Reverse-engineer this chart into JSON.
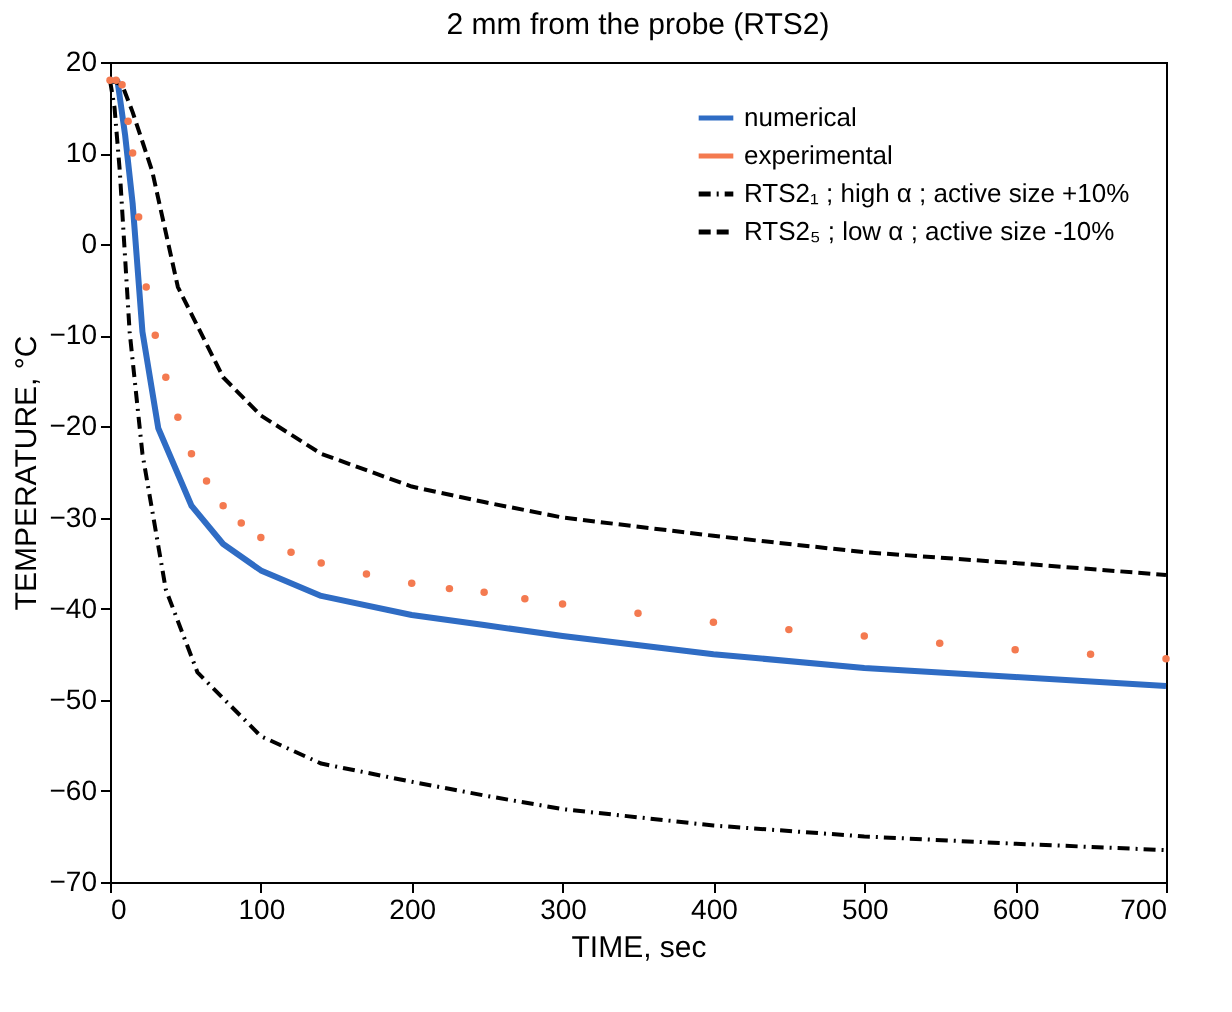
{
  "chart_data": {
    "type": "line",
    "title": "2 mm from the probe (RTS2)",
    "xlabel": "TIME, sec",
    "ylabel": "TEMPERATURE, °C",
    "xlim": [
      0,
      700
    ],
    "xticks": [
      0,
      100,
      200,
      300,
      400,
      500,
      600,
      700
    ],
    "ylim": [
      -70,
      20
    ],
    "yticks": [
      -70,
      -60,
      -50,
      -40,
      -30,
      -20,
      -10,
      0,
      10,
      20
    ],
    "grid": false,
    "legend": "top right",
    "series": [
      {
        "name": "numerical",
        "type": "line",
        "line_style": "solid",
        "color": "#2f6cc4",
        "x": [
          0,
          5,
          10,
          15,
          21.5,
          32,
          54,
          75,
          100,
          140,
          200,
          248,
          300,
          400,
          500,
          600,
          700
        ],
        "values": [
          18,
          17.9,
          12,
          4.5,
          -9.6,
          -20.2,
          -28.7,
          -32.9,
          -35.8,
          -38.6,
          -40.7,
          -41.8,
          -43,
          -45,
          -46.5,
          -47.5,
          -48.5
        ]
      },
      {
        "name": "experimental",
        "type": "scatter",
        "marker": "circle",
        "color": "#f47a50",
        "x": [
          0,
          4,
          8,
          12,
          15,
          19,
          24,
          30,
          37,
          45,
          54,
          64,
          75,
          87,
          100,
          120,
          140,
          170,
          200,
          225,
          248,
          275,
          300,
          350,
          400,
          450,
          500,
          550,
          600,
          650,
          700
        ],
        "values": [
          18,
          18,
          17.5,
          13.5,
          10,
          3,
          -4.7,
          -10,
          -14.6,
          -19,
          -23,
          -26,
          -28.7,
          -30.6,
          -32.2,
          -33.8,
          -35,
          -36.2,
          -37.2,
          -37.8,
          -38.2,
          -38.9,
          -39.5,
          -40.5,
          -41.5,
          -42.3,
          -43,
          -43.8,
          -44.5,
          -45,
          -45.5
        ]
      },
      {
        "name": "RTS2₁ ; high α ; active size +10%",
        "type": "line",
        "line_style": "dashdot",
        "color": "#000000",
        "x": [
          0,
          3,
          6.5,
          13,
          21.5,
          37,
          58,
          100,
          140,
          200,
          248,
          300,
          400,
          500,
          600,
          700
        ],
        "values": [
          18,
          15,
          8,
          -9.6,
          -23,
          -37.9,
          -47,
          -54,
          -57,
          -59,
          -60.5,
          -62,
          -63.8,
          -65,
          -65.8,
          -66.5
        ]
      },
      {
        "name": "RTS2₅ ; low α ; active size -10%",
        "type": "line",
        "line_style": "dashed",
        "color": "#000000",
        "x": [
          0,
          8,
          15,
          22,
          28,
          45,
          75,
          100,
          140,
          200,
          248,
          300,
          400,
          500,
          600,
          700
        ],
        "values": [
          18,
          17.5,
          14.5,
          11,
          8,
          -4.7,
          -14.6,
          -18.8,
          -23,
          -26.6,
          -28.3,
          -30,
          -32,
          -33.8,
          -35,
          -36.3
        ]
      }
    ]
  }
}
